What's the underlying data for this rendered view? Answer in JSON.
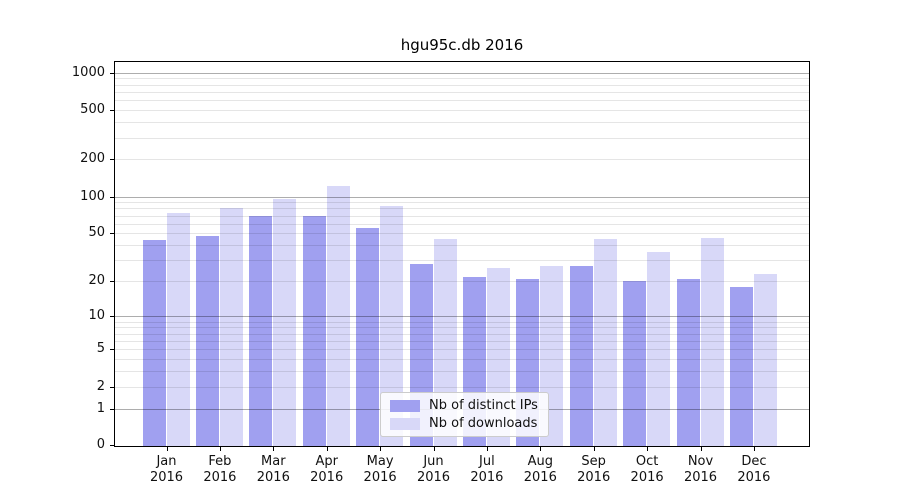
{
  "chart_data": {
    "type": "bar",
    "title": "hgu95c.db 2016",
    "categories": [
      "Jan",
      "Feb",
      "Mar",
      "Apr",
      "May",
      "Jun",
      "Jul",
      "Aug",
      "Sep",
      "Oct",
      "Nov",
      "Dec"
    ],
    "category_year": "2016",
    "series": [
      {
        "name": "Nb of distinct IPs",
        "color": "#a0a0f0",
        "values": [
          44,
          48,
          69,
          70,
          55,
          28,
          22,
          21,
          27,
          20,
          21,
          18
        ]
      },
      {
        "name": "Nb of downloads",
        "color": "#d8d8f8",
        "values": [
          73,
          80,
          96,
          121,
          83,
          45,
          26,
          27,
          45,
          35,
          46,
          23
        ]
      }
    ],
    "yscale": "log10(1+y)",
    "ylim": [
      0,
      1215
    ],
    "y_top": 1215,
    "yticks": [
      0,
      1,
      2,
      5,
      10,
      20,
      50,
      100,
      200,
      500,
      1000
    ],
    "major_grid_values": [
      1,
      10,
      100,
      1000
    ],
    "minor_grid_values": [
      2,
      3,
      4,
      5,
      6,
      7,
      8,
      9,
      20,
      30,
      40,
      50,
      60,
      70,
      80,
      90,
      200,
      300,
      400,
      500,
      600,
      700,
      800,
      900
    ],
    "grid": true,
    "legend_position": "inside-bottom-center",
    "colors": {
      "major_grid": "rgba(0,0,0,0.32)",
      "minor_grid": "rgba(0,0,0,0.10)",
      "spine": "#000000",
      "background": "#ffffff"
    }
  }
}
